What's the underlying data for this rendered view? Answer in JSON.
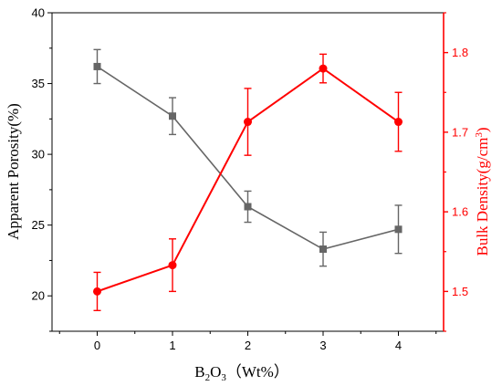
{
  "chart_data": {
    "type": "line",
    "xlabel_parts": {
      "base": "B",
      "sub1": "2",
      "mid": "O",
      "sub2": "3",
      "rest": "（Wt%）"
    },
    "ylabel_left": "Apparent Porosity(%)",
    "ylabel_right_parts": {
      "base": "Bulk Density(g/cm",
      "sup": "3",
      "rest": ")"
    },
    "x_ticks": [
      0,
      1,
      2,
      3,
      4
    ],
    "xlim": [
      -0.6,
      4.6
    ],
    "left_axis": {
      "ylim": [
        17.5,
        40
      ],
      "ticks": [
        20,
        25,
        30,
        35,
        40
      ],
      "color": "#666666"
    },
    "right_axis": {
      "ylim": [
        1.45,
        1.85
      ],
      "ticks": [
        "1.5",
        "1.6",
        "1.7",
        "1.8"
      ],
      "color": "#ff0000"
    },
    "series": [
      {
        "axis": "left",
        "marker": "square",
        "color": "#666666",
        "x": [
          0,
          1,
          2,
          3,
          4
        ],
        "y": [
          36.2,
          32.7,
          26.3,
          23.3,
          24.7
        ],
        "err": [
          1.2,
          1.3,
          1.1,
          1.2,
          1.7
        ]
      },
      {
        "axis": "right",
        "marker": "circle",
        "color": "#ff0000",
        "x": [
          0,
          1,
          2,
          3,
          4
        ],
        "y": [
          1.5,
          1.533,
          1.713,
          1.78,
          1.713
        ],
        "err": [
          0.024,
          0.033,
          0.042,
          0.018,
          0.037
        ]
      }
    ],
    "grid": false
  }
}
